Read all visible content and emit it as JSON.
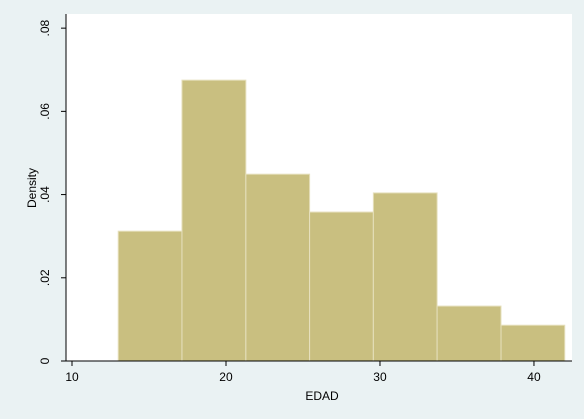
{
  "chart_data": {
    "type": "histogram",
    "x_label": "EDAD",
    "y_label": "Density",
    "bins": [
      13,
      17.14,
      21.29,
      25.43,
      29.57,
      33.71,
      37.86,
      42
    ],
    "values": [
      0.0312,
      0.0675,
      0.0449,
      0.0358,
      0.0404,
      0.0132,
      0.0086
    ],
    "color": "#c9bf80",
    "edge_color": "#e6e0bd",
    "xlim": [
      9.61,
      42.47
    ],
    "xticks": [
      10,
      20,
      30,
      40
    ],
    "ylim": [
      0,
      0.0834
    ],
    "yticks": [
      0,
      {
        "value": 0.02,
        "label": ".02"
      },
      {
        "value": 0.04,
        "label": ".04"
      },
      {
        "value": 0.06,
        "label": ".06"
      },
      {
        "value": 0.08,
        "label": ".08"
      }
    ]
  }
}
